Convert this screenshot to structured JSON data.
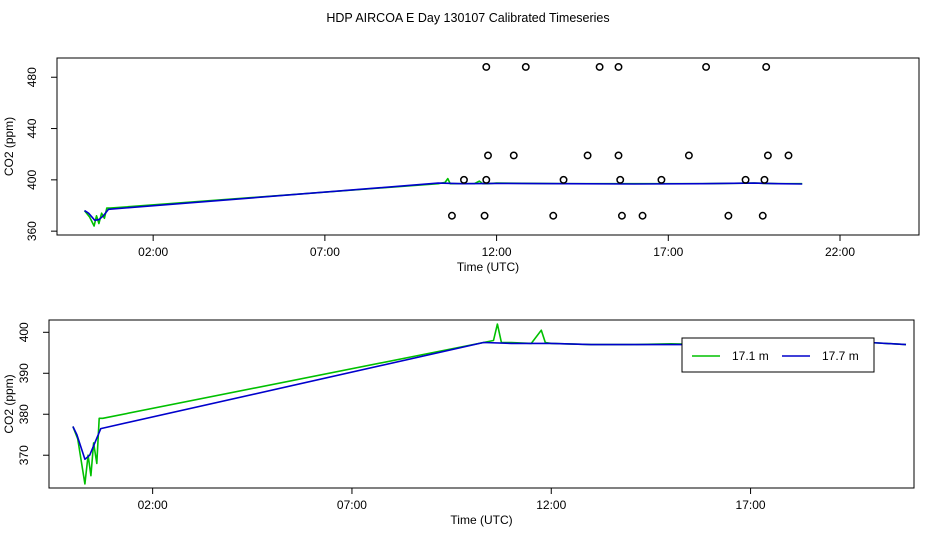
{
  "title": "HDP AIRCOA E  Day 130107  Calibrated Timeseries",
  "colors": {
    "green": "#00c000",
    "blue": "#0000cc",
    "black": "#000000"
  },
  "chart_data": [
    {
      "type": "line",
      "xlabel": "Time (UTC)",
      "ylabel": "CO2 (ppm)",
      "xlim": [
        -0.8,
        24.3
      ],
      "ylim": [
        357,
        495
      ],
      "xticks": [
        2,
        7,
        12,
        17,
        22
      ],
      "xtick_labels": [
        "02:00",
        "07:00",
        "12:00",
        "17:00",
        "22:00"
      ],
      "yticks": [
        360,
        400,
        440,
        480
      ],
      "ytick_labels": [
        "360",
        "400",
        "440",
        "480"
      ],
      "series": [
        {
          "color": "#00c000",
          "x": [
            0,
            0.15,
            0.28,
            0.35,
            0.42,
            0.5,
            0.58,
            0.65,
            0.75,
            10.3,
            10.5,
            10.58,
            10.65,
            10.8,
            11.0,
            11.35,
            11.5,
            11.6,
            11.75,
            12.0,
            14.0,
            16.0,
            18.0,
            19.5,
            20.2,
            20.9
          ],
          "y": [
            376,
            371,
            364,
            372,
            366,
            374,
            370,
            378,
            378,
            397,
            398,
            401,
            397,
            397,
            397,
            397,
            399,
            397,
            397,
            397.5,
            397,
            397,
            397,
            397.5,
            397,
            397
          ]
        },
        {
          "color": "#0000cc",
          "x": [
            0,
            0.12,
            0.3,
            0.42,
            0.55,
            0.7,
            10.3,
            11.0,
            12.0,
            14.0,
            16.0,
            18.0,
            19.5,
            20.2,
            20.9
          ],
          "y": [
            376,
            374,
            368.5,
            369,
            372,
            377,
            397.5,
            397,
            397.2,
            397,
            396.8,
            397,
            397.5,
            397,
            396.8
          ]
        }
      ],
      "markers": {
        "shape": "open-circle",
        "x": [
          11.7,
          12.85,
          15.0,
          15.55,
          18.1,
          19.85,
          11.75,
          12.5,
          14.65,
          15.55,
          17.6,
          19.9,
          20.5,
          11.05,
          11.7,
          13.95,
          15.6,
          16.8,
          19.25,
          19.8,
          10.7,
          11.65,
          13.65,
          15.65,
          16.25,
          18.75,
          19.75
        ],
        "y": [
          488,
          488,
          488,
          488,
          488,
          488,
          419,
          419,
          419,
          419,
          419,
          419,
          419,
          400,
          400,
          400,
          400,
          400,
          400,
          400,
          372,
          372,
          372,
          372,
          372,
          372,
          372
        ]
      }
    },
    {
      "type": "line",
      "xlabel": "Time (UTC)",
      "ylabel": "CO2 (ppm)",
      "xlim": [
        -0.6,
        21.1
      ],
      "ylim": [
        362,
        403
      ],
      "xticks": [
        2,
        7,
        12,
        17
      ],
      "xtick_labels": [
        "02:00",
        "07:00",
        "12:00",
        "17:00"
      ],
      "yticks": [
        370,
        380,
        390,
        400
      ],
      "ytick_labels": [
        "370",
        "380",
        "390",
        "400"
      ],
      "legend": {
        "position": "top-right",
        "entries": [
          {
            "label": "17.1 m",
            "color": "#00c000"
          },
          {
            "label": "17.7 m",
            "color": "#0000cc"
          }
        ]
      },
      "series": [
        {
          "name": "17.1 m",
          "color": "#00c000",
          "x": [
            0,
            0.12,
            0.3,
            0.38,
            0.45,
            0.52,
            0.6,
            0.66,
            0.75,
            10.3,
            10.55,
            10.65,
            10.75,
            11.0,
            11.5,
            11.75,
            11.85,
            12.0,
            13.0,
            14.0,
            15.0,
            16.0,
            17.0,
            18.0,
            19.0,
            20.0,
            20.9
          ],
          "y": [
            377,
            374,
            363,
            370,
            365,
            373,
            368,
            379,
            379,
            397.5,
            398,
            402,
            397.5,
            397.5,
            397.3,
            400.5,
            397.5,
            397.3,
            397,
            397,
            397.2,
            397,
            397.3,
            397,
            397.3,
            397.5,
            397
          ]
        },
        {
          "name": "17.7 m",
          "color": "#0000cc",
          "x": [
            0,
            0.1,
            0.3,
            0.42,
            0.55,
            0.7,
            10.3,
            11.0,
            12.0,
            13.0,
            14.0,
            15.0,
            16.0,
            17.0,
            18.0,
            19.0,
            20.0,
            20.9
          ],
          "y": [
            377,
            375,
            369,
            370,
            373,
            376.5,
            397.5,
            397.3,
            397.3,
            397,
            397,
            397,
            397,
            397.2,
            397,
            397.3,
            397.5,
            397
          ]
        }
      ]
    }
  ]
}
